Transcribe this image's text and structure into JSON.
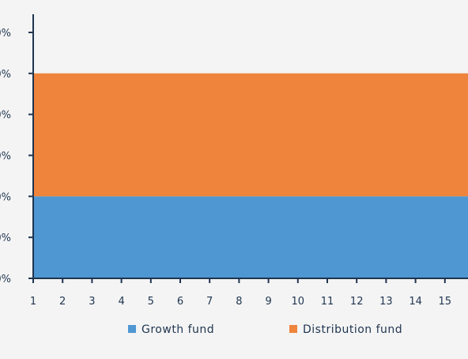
{
  "chart_data": {
    "type": "area",
    "stacked": true,
    "x": [
      1,
      2,
      3,
      4,
      5,
      6,
      7,
      8,
      9,
      10,
      11,
      12,
      13,
      14,
      15
    ],
    "series": [
      {
        "name": "Growth fund",
        "color": "#4f97d2",
        "values": [
          20,
          20,
          20,
          20,
          20,
          20,
          20,
          20,
          20,
          20,
          20,
          20,
          20,
          20,
          20
        ]
      },
      {
        "name": "Distribution fund",
        "color": "#ef843d",
        "values": [
          30,
          30,
          30,
          30,
          30,
          30,
          30,
          30,
          30,
          30,
          30,
          30,
          30,
          30,
          30
        ]
      }
    ],
    "y_tick_labels": [
      "0%",
      "0%",
      "0%",
      "0%",
      "0%",
      "0%",
      "0%"
    ],
    "x_tick_labels": [
      "1",
      "2",
      "3",
      "4",
      "5",
      "6",
      "7",
      "8",
      "9",
      "10",
      "11",
      "12",
      "13",
      "14",
      "15"
    ],
    "ylim": [
      0,
      60
    ],
    "grid": false,
    "legend_position": "bottom"
  },
  "colors": {
    "background": "#f4f4f4",
    "axis": "#1f3550",
    "text": "#1f3550"
  }
}
